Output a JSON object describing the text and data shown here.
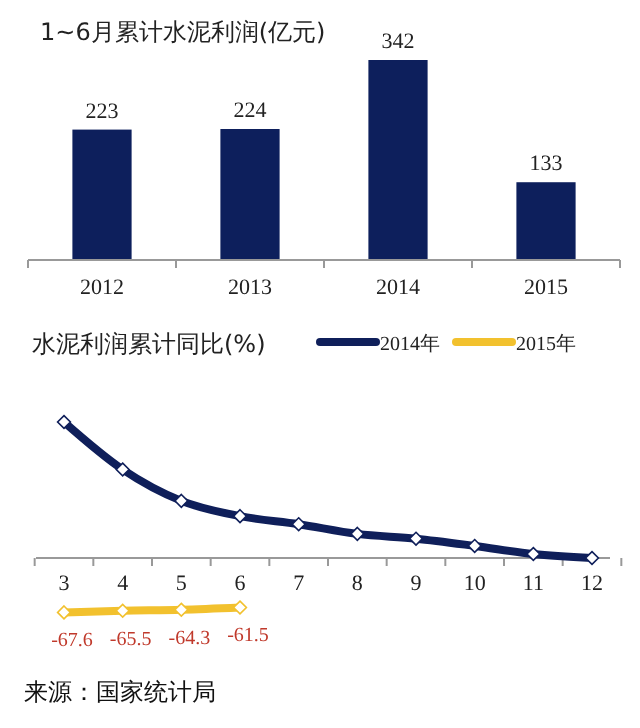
{
  "chart_data": [
    {
      "type": "bar",
      "title": "1~6月累计水泥利润(亿元)",
      "categories": [
        "2012",
        "2013",
        "2014",
        "2015"
      ],
      "values": [
        223,
        224,
        342,
        133
      ],
      "color": "#0d1f5c",
      "data_labels": true
    },
    {
      "type": "line",
      "title": "水泥利润累计同比(%)",
      "categories": [
        "3",
        "4",
        "5",
        "6",
        "7",
        "8",
        "9",
        "10",
        "11",
        "12"
      ],
      "legend": "top right",
      "marker": "diamond",
      "series": [
        {
          "name": "2014年",
          "color": "#0f1f5a",
          "values": [
            169,
            110,
            71,
            52,
            42,
            30,
            24,
            15,
            5,
            0
          ]
        },
        {
          "name": "2015年",
          "color": "#f2c12e",
          "values": [
            -67.6,
            -65.5,
            -64.3,
            -61.5,
            null,
            null,
            null,
            null,
            null,
            null
          ],
          "value_labels": [
            "-67.6",
            "-65.5",
            "-64.3",
            "-61.5",
            null,
            null,
            null,
            null,
            null,
            null
          ]
        }
      ],
      "annotations": [
        "来源：国家统计局"
      ]
    }
  ]
}
